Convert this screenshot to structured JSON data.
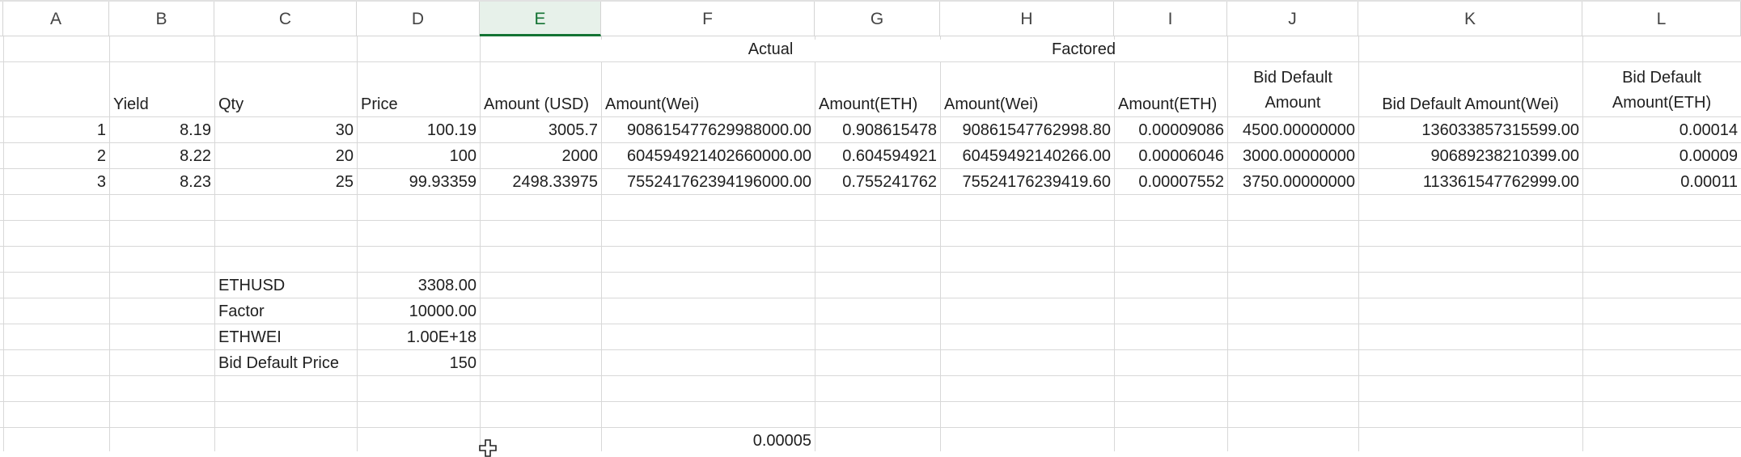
{
  "columns": [
    "A",
    "B",
    "C",
    "D",
    "E",
    "F",
    "G",
    "H",
    "I",
    "J",
    "K",
    "L"
  ],
  "selected_column": "E",
  "group_headers": {
    "actual": "Actual",
    "factored": "Factored"
  },
  "headers": {
    "yield": "Yield",
    "qty": "Qty",
    "price": "Price",
    "amount_usd": "Amount (USD)",
    "amount_wei": "Amount(Wei)",
    "amount_eth": "Amount(ETH)",
    "factored_amount_wei": "Amount(Wei)",
    "factored_amount_eth": "Amount(ETH)",
    "bid_default_amount": "Bid Default Amount",
    "bid_default_amount_wei": "Bid Default Amount(Wei)",
    "bid_default_amount_eth": "Bid Default Amount(ETH)"
  },
  "rows": [
    {
      "a": "1",
      "yield": "8.19",
      "qty": "30",
      "price": "100.19",
      "amount_usd": "3005.7",
      "amount_wei": "908615477629988000.00",
      "amount_eth": "0.908615478",
      "factored_wei": "90861547762998.80",
      "factored_eth": "0.00009086",
      "bid_default_amount": "4500.00000000",
      "bid_default_wei": "136033857315599.00",
      "bid_default_eth": "0.00014"
    },
    {
      "a": "2",
      "yield": "8.22",
      "qty": "20",
      "price": "100",
      "amount_usd": "2000",
      "amount_wei": "604594921402660000.00",
      "amount_eth": "0.604594921",
      "factored_wei": "60459492140266.00",
      "factored_eth": "0.00006046",
      "bid_default_amount": "3000.00000000",
      "bid_default_wei": "90689238210399.00",
      "bid_default_eth": "0.00009"
    },
    {
      "a": "3",
      "yield": "8.23",
      "qty": "25",
      "price": "99.93359",
      "amount_usd": "2498.33975",
      "amount_wei": "755241762394196000.00",
      "amount_eth": "0.755241762",
      "factored_wei": "75524176239419.60",
      "factored_eth": "0.00007552",
      "bid_default_amount": "3750.00000000",
      "bid_default_wei": "113361547762999.00",
      "bid_default_eth": "0.00011"
    }
  ],
  "params": [
    {
      "label": "ETHUSD",
      "value": "3308.00"
    },
    {
      "label": "Factor",
      "value": "10000.00"
    },
    {
      "label": "ETHWEI",
      "value": "1.00E+18"
    },
    {
      "label": "Bid Default Price",
      "value": "150"
    }
  ],
  "bottom_value": "0.00005",
  "icons": {
    "cursor": "plus-cursor-icon"
  },
  "colors": {
    "selected_header_bg": "#e7f1ea",
    "selected_header_fg": "#137333",
    "gridline": "#d8d8d8"
  }
}
